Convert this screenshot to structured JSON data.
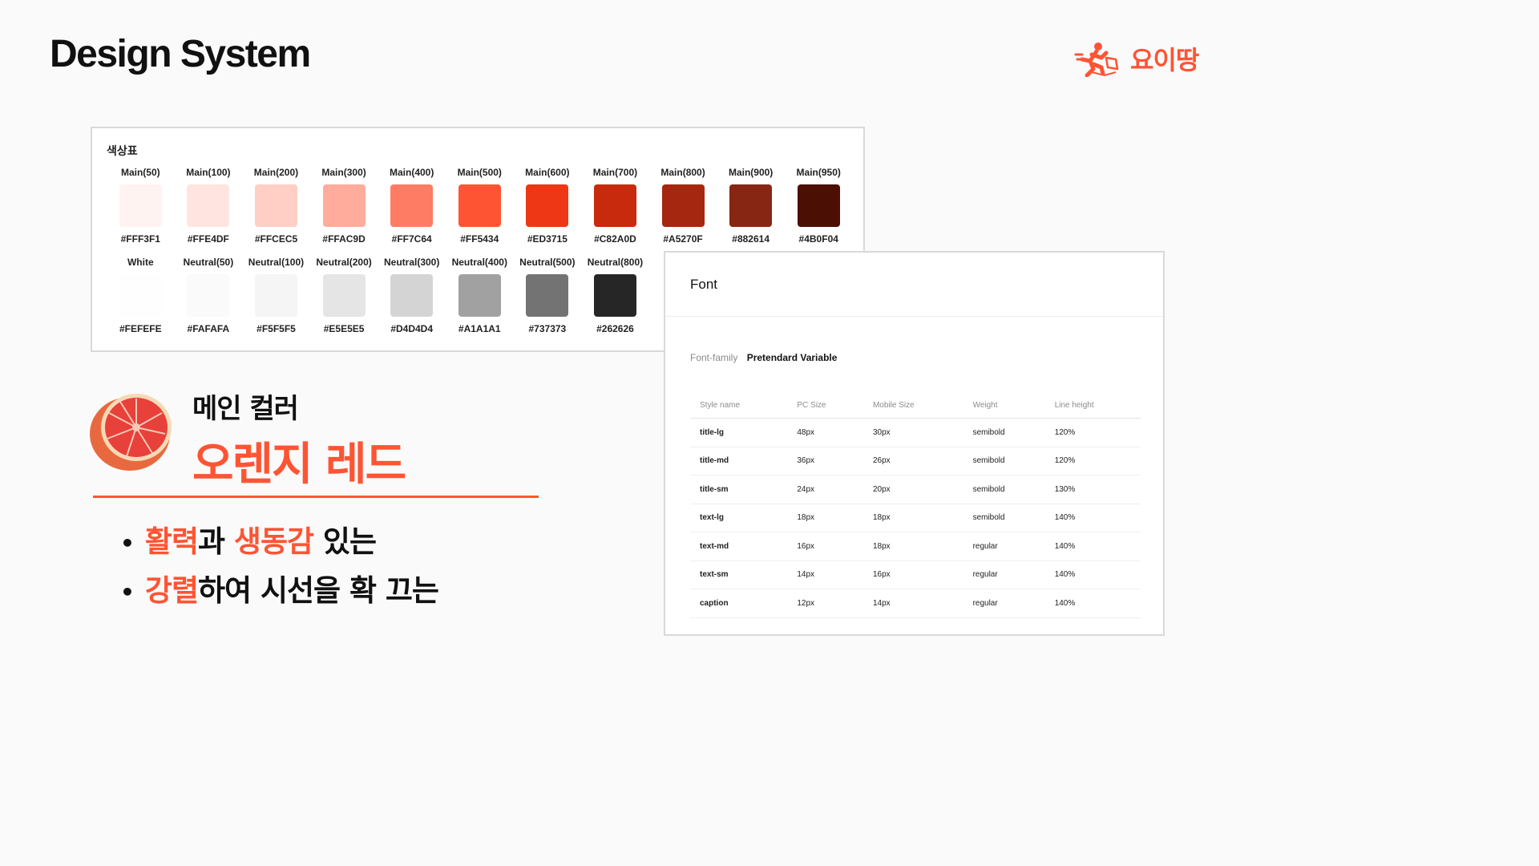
{
  "header": {
    "title": "Design System",
    "logo_text": "요이땅"
  },
  "palette": {
    "title": "색상표",
    "main": [
      {
        "name": "Main(50)",
        "hex": "#FFF3F1",
        "color": "#FFF3F1"
      },
      {
        "name": "Main(100)",
        "hex": "#FFE4DF",
        "color": "#FFE4DF"
      },
      {
        "name": "Main(200)",
        "hex": "#FFCEC5",
        "color": "#FFCEC5"
      },
      {
        "name": "Main(300)",
        "hex": "#FFAC9D",
        "color": "#FFAC9D"
      },
      {
        "name": "Main(400)",
        "hex": "#FF7C64",
        "color": "#FF7C64"
      },
      {
        "name": "Main(500)",
        "hex": "#FF5434",
        "color": "#FF5434"
      },
      {
        "name": "Main(600)",
        "hex": "#ED3715",
        "color": "#ED3715"
      },
      {
        "name": "Main(700)",
        "hex": "#C82A0D",
        "color": "#C82A0D"
      },
      {
        "name": "Main(800)",
        "hex": "#A5270F",
        "color": "#A5270F"
      },
      {
        "name": "Main(900)",
        "hex": "#882614",
        "color": "#882614"
      },
      {
        "name": "Main(950)",
        "hex": "#4B0F04",
        "color": "#4B0F04"
      }
    ],
    "neutral": [
      {
        "name": "White",
        "hex": "#FEFEFE",
        "color": "#FEFEFE"
      },
      {
        "name": "Neutral(50)",
        "hex": "#FAFAFA",
        "color": "#FAFAFA"
      },
      {
        "name": "Neutral(100)",
        "hex": "#F5F5F5",
        "color": "#F5F5F5"
      },
      {
        "name": "Neutral(200)",
        "hex": "#E5E5E5",
        "color": "#E5E5E5"
      },
      {
        "name": "Neutral(300)",
        "hex": "#D4D4D4",
        "color": "#D4D4D4"
      },
      {
        "name": "Neutral(400)",
        "hex": "#A1A1A1",
        "color": "#A1A1A1"
      },
      {
        "name": "Neutral(500)",
        "hex": "#737373",
        "color": "#737373"
      },
      {
        "name": "Neutral(800)",
        "hex": "#262626",
        "color": "#262626"
      }
    ]
  },
  "font": {
    "title": "Font",
    "family_label": "Font-family",
    "family_value": "Pretendard Variable",
    "columns": [
      "Style name",
      "PC Size",
      "Mobile Size",
      "Weight",
      "Line height"
    ],
    "rows": [
      [
        "title-lg",
        "48px",
        "30px",
        "semibold",
        "120%"
      ],
      [
        "title-md",
        "36px",
        "26px",
        "semibold",
        "120%"
      ],
      [
        "title-sm",
        "24px",
        "20px",
        "semibold",
        "130%"
      ],
      [
        "text-lg",
        "18px",
        "18px",
        "semibold",
        "140%"
      ],
      [
        "text-md",
        "16px",
        "18px",
        "regular",
        "140%"
      ],
      [
        "text-sm",
        "14px",
        "16px",
        "regular",
        "140%"
      ],
      [
        "caption",
        "12px",
        "14px",
        "regular",
        "140%"
      ]
    ]
  },
  "main_color": {
    "subtitle": "메인 컬러",
    "title": "오렌지 레드",
    "bullets": [
      [
        {
          "text": "활력",
          "accent": true
        },
        {
          "text": "과 ",
          "accent": false
        },
        {
          "text": "생동감",
          "accent": true
        },
        {
          "text": " 있는",
          "accent": false
        }
      ],
      [
        {
          "text": "강렬",
          "accent": true
        },
        {
          "text": "하여 시선을 확 끄는",
          "accent": false
        }
      ]
    ]
  },
  "colors": {
    "accent": "#FF5434",
    "text": "#111111"
  }
}
